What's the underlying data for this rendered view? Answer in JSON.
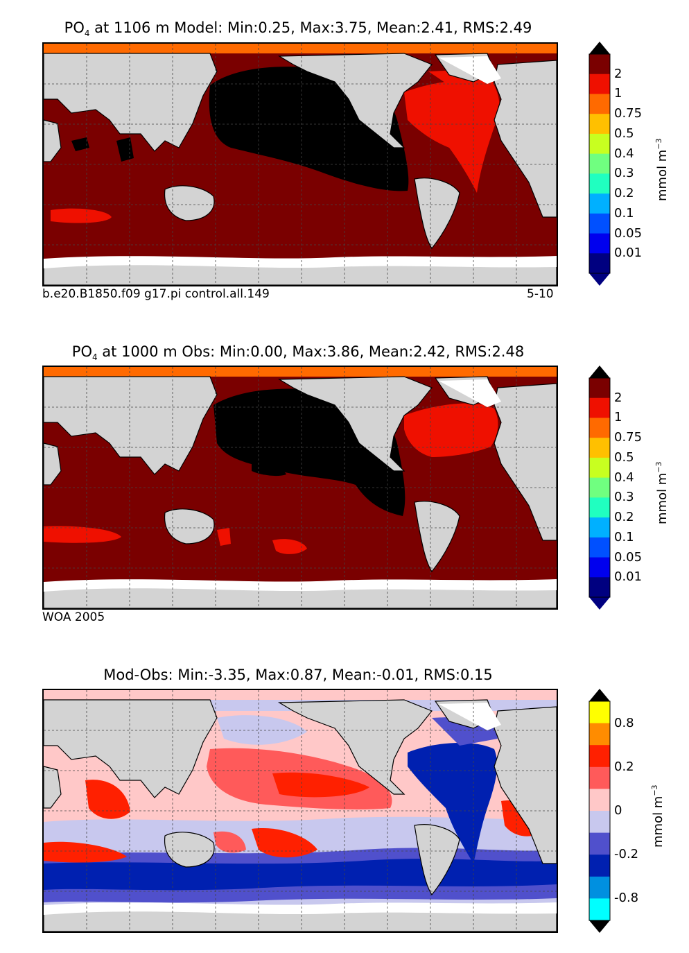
{
  "panels": [
    {
      "id": "model",
      "title": {
        "species": "PO",
        "sub": "4",
        "rest": " at 1106 m Model: Min:0.25, Max:3.75, Mean:2.41, RMS:2.49"
      },
      "caption_left": "b.e20.B1850.f09 g17.pi control.all.149",
      "caption_right": "5-10",
      "colorbar": {
        "levels": [
          "2",
          "1",
          "0.75",
          "0.5",
          "0.4",
          "0.3",
          "0.2",
          "0.1",
          "0.05",
          "0.01"
        ],
        "colors": [
          "#7a0000",
          "#ef1000",
          "#ff6a00",
          "#ffc000",
          "#c8ff20",
          "#70ff80",
          "#20ffc0",
          "#00b0ff",
          "#0050ff",
          "#0000ee",
          "#000080"
        ],
        "top_color": "#000000",
        "unit": "mmol m",
        "unit_sup": "−3"
      }
    },
    {
      "id": "obs",
      "title": {
        "species": "PO",
        "sub": "4",
        "rest": " at 1000 m Obs: Min:0.00, Max:3.86, Mean:2.42, RMS:2.48"
      },
      "caption_left": "WOA 2005",
      "caption_right": "",
      "colorbar": {
        "levels": [
          "2",
          "1",
          "0.75",
          "0.5",
          "0.4",
          "0.3",
          "0.2",
          "0.1",
          "0.05",
          "0.01"
        ],
        "colors": [
          "#7a0000",
          "#ef1000",
          "#ff6a00",
          "#ffc000",
          "#c8ff20",
          "#70ff80",
          "#20ffc0",
          "#00b0ff",
          "#0050ff",
          "#0000ee",
          "#000080"
        ],
        "top_color": "#7a0000",
        "unit": "mmol m",
        "unit_sup": "−3"
      }
    },
    {
      "id": "diff",
      "title": {
        "species": "",
        "sub": "",
        "rest": "Mod-Obs: Min:-3.35, Max:0.87, Mean:-0.01, RMS:0.15"
      },
      "caption_left": "",
      "caption_right": "",
      "colorbar": {
        "levels": [
          "0.8",
          "0.2",
          "0",
          "-0.2",
          "-0.8"
        ],
        "colors": [
          "#ffff00",
          "#ff8c00",
          "#ff2000",
          "#ff5a5a",
          "#ffc8c8",
          "#c8c8ee",
          "#5050cc",
          "#0020b0",
          "#0090e0",
          "#00ffff"
        ],
        "top_color": "#ffff00",
        "unit": "mmol m",
        "unit_sup": "−3"
      }
    }
  ],
  "colors": {
    "land": "#d3d3d3",
    "ice": "#ffffff",
    "pacific_core": "#000000",
    "deep_ocean": "#7a0000",
    "atlantic": "#ef1000",
    "arctic": "#ff6a00"
  }
}
